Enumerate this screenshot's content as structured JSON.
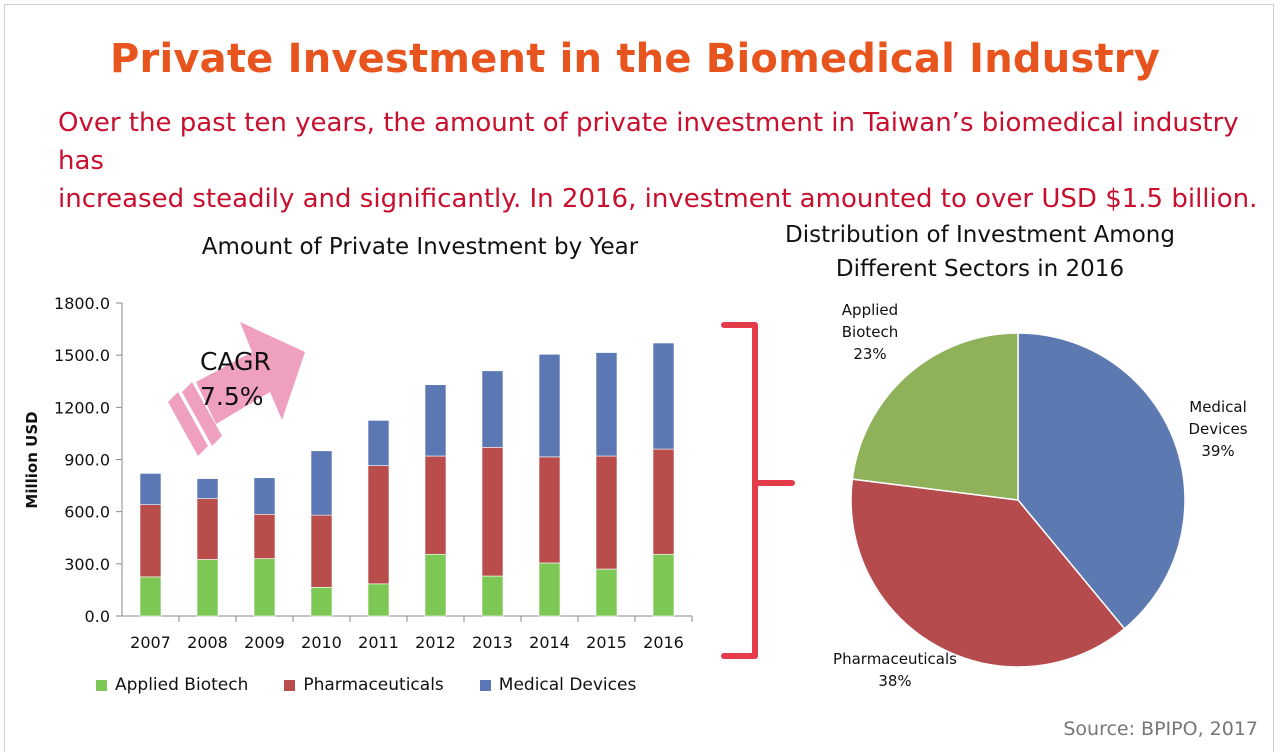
{
  "header": {
    "title": "Private Investment in the Biomedical Industry",
    "subtitle_line1": "Over the past ten years, the amount of private investment in Taiwan’s biomedical industry has",
    "subtitle_line2": "increased steadily and significantly. In 2016, investment amounted to over USD $1.5 billion."
  },
  "colors": {
    "title": "#e8541e",
    "subtitle": "#c8102e",
    "applied_biotech": "#7dc855",
    "pharmaceuticals": "#b84d4b",
    "medical_devices": "#5b78b4",
    "pie_applied_biotech": "#8fb15a",
    "pie_pharmaceuticals": "#b54b4c",
    "pie_medical_devices": "#5d79b1",
    "arrow": "#f0a0bf",
    "bracket": "#e33b4a"
  },
  "annotation": {
    "arrow_label_1": "CAGR",
    "arrow_label_2": "7.5%"
  },
  "source": "Source: BPIPO, 2017",
  "chart_data": [
    {
      "type": "bar",
      "stacked": true,
      "title": "Amount of Private Investment by Year",
      "ylabel": "Million USD",
      "xlabel": "",
      "ylim": [
        0,
        1800
      ],
      "yticks": [
        "0.0",
        "300.0",
        "600.0",
        "900.0",
        "1200.0",
        "1500.0",
        "1800.0"
      ],
      "grid": false,
      "legend": "bottom",
      "categories": [
        "2007",
        "2008",
        "2009",
        "2010",
        "2011",
        "2012",
        "2013",
        "2014",
        "2015",
        "2016"
      ],
      "series": [
        {
          "name": "Applied Biotech",
          "values": [
            225,
            325,
            330,
            165,
            185,
            355,
            230,
            305,
            270,
            355
          ]
        },
        {
          "name": "Pharmaceuticals",
          "values": [
            415,
            350,
            255,
            415,
            680,
            565,
            740,
            610,
            650,
            605
          ]
        },
        {
          "name": "Medical Devices",
          "values": [
            180,
            115,
            210,
            370,
            260,
            410,
            440,
            590,
            595,
            610
          ]
        }
      ]
    },
    {
      "type": "pie",
      "title_line1": "Distribution of Investment Among",
      "title_line2": "Different Sectors in 2016",
      "slices": [
        {
          "name_line1": "Medical",
          "name_line2": "Devices",
          "value": 39,
          "label": "39%"
        },
        {
          "name_line1": "Pharmaceuticals",
          "name_line2": "",
          "value": 38,
          "label": "38%"
        },
        {
          "name_line1": "Applied",
          "name_line2": "Biotech",
          "value": 23,
          "label": "23%"
        }
      ]
    }
  ]
}
